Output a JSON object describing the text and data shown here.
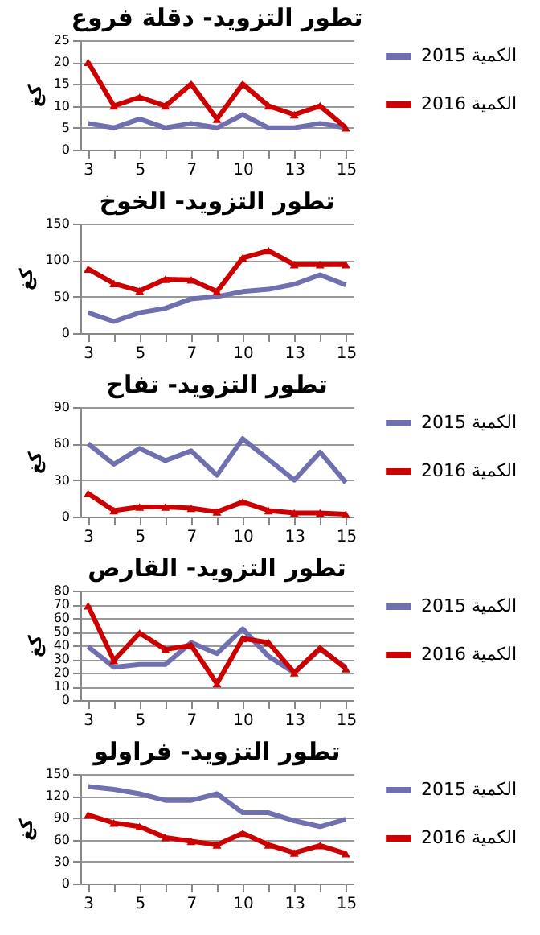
{
  "chart_data": [
    {
      "type": "line",
      "title": "تطور التزويد- دقلة فروع",
      "ylabel": "كغ",
      "categories": [
        "3",
        null,
        "5",
        null,
        "7",
        null,
        "10",
        null,
        "13",
        null,
        "15"
      ],
      "ylim": [
        0,
        25
      ],
      "yticks": [
        0,
        5,
        10,
        15,
        20,
        25
      ],
      "grid": "y",
      "legend": "right",
      "series": [
        {
          "name": "الكمية 2015",
          "color": "#7070b0",
          "marker": "none",
          "values": [
            6,
            5,
            7,
            5,
            6,
            5,
            8,
            5,
            5,
            6,
            5
          ]
        },
        {
          "name": "الكمية 2016",
          "color": "#cc0000",
          "marker": "triangle",
          "values": [
            20,
            10,
            12,
            10,
            15,
            7,
            15,
            10,
            8,
            10,
            5
          ]
        }
      ]
    },
    {
      "type": "line",
      "title": "تطور التزويد- الخوخ",
      "ylabel": "كغ",
      "categories": [
        "3",
        null,
        "5",
        null,
        "7",
        null,
        "10",
        null,
        "13",
        null,
        "15"
      ],
      "ylim": [
        0,
        150
      ],
      "yticks": [
        0,
        50,
        100,
        150
      ],
      "grid": "y",
      "series": [
        {
          "color": "#7070b0",
          "marker": "none",
          "values": [
            28,
            16,
            28,
            34,
            47,
            50,
            57,
            60,
            67,
            80,
            66
          ]
        },
        {
          "color": "#cc0000",
          "marker": "triangle",
          "values": [
            88,
            68,
            58,
            74,
            73,
            57,
            103,
            113,
            94,
            94,
            94
          ]
        }
      ]
    },
    {
      "type": "line",
      "title": "تطور التزويد- تفاح",
      "ylabel": "كغ",
      "categories": [
        "3",
        null,
        "5",
        null,
        "7",
        null,
        "10",
        null,
        "13",
        null,
        "15"
      ],
      "ylim": [
        0,
        90
      ],
      "yticks": [
        0,
        30,
        60,
        90
      ],
      "grid": "y",
      "legend": "right",
      "series": [
        {
          "name": "الكمية 2015",
          "color": "#7070b0",
          "marker": "none",
          "values": [
            60,
            43,
            56,
            46,
            54,
            34,
            64,
            47,
            30,
            53,
            28
          ]
        },
        {
          "name": "الكمية 2016",
          "color": "#cc0000",
          "marker": "triangle",
          "values": [
            19,
            5,
            8,
            8,
            7,
            4,
            12,
            5,
            3,
            3,
            2
          ]
        }
      ]
    },
    {
      "type": "line",
      "title": "تطور التزويد- القارص",
      "ylabel": "كغ",
      "categories": [
        "3",
        null,
        "5",
        null,
        "7",
        null,
        "10",
        null,
        "13",
        null,
        "15"
      ],
      "ylim": [
        0,
        80
      ],
      "yticks": [
        0,
        10,
        20,
        30,
        40,
        50,
        60,
        70,
        80
      ],
      "grid": "y",
      "legend": "right",
      "series": [
        {
          "name": "الكمية 2015",
          "color": "#7070b0",
          "marker": "none",
          "values": [
            39,
            24,
            26,
            26,
            42,
            34,
            52,
            32,
            20,
            37,
            24
          ]
        },
        {
          "name": "الكمية 2016",
          "color": "#cc0000",
          "marker": "triangle",
          "values": [
            69,
            29,
            49,
            37,
            40,
            12,
            45,
            42,
            20,
            38,
            23
          ]
        }
      ]
    },
    {
      "type": "line",
      "title": "تطور التزويد- فراولو",
      "ylabel": "كغ",
      "categories": [
        "3",
        null,
        "5",
        null,
        "7",
        null,
        "10",
        null,
        "13",
        null,
        "15"
      ],
      "ylim": [
        0,
        150
      ],
      "yticks": [
        0,
        30,
        60,
        90,
        120,
        150
      ],
      "grid": "y",
      "legend": "right",
      "series": [
        {
          "name": "الكمية 2015",
          "color": "#7070b0",
          "marker": "none",
          "values": [
            133,
            129,
            123,
            114,
            114,
            123,
            97,
            97,
            86,
            78,
            88
          ]
        },
        {
          "name": "الكمية 2016",
          "color": "#cc0000",
          "marker": "triangle",
          "values": [
            94,
            83,
            78,
            63,
            58,
            53,
            69,
            53,
            42,
            52,
            41
          ]
        }
      ]
    }
  ]
}
